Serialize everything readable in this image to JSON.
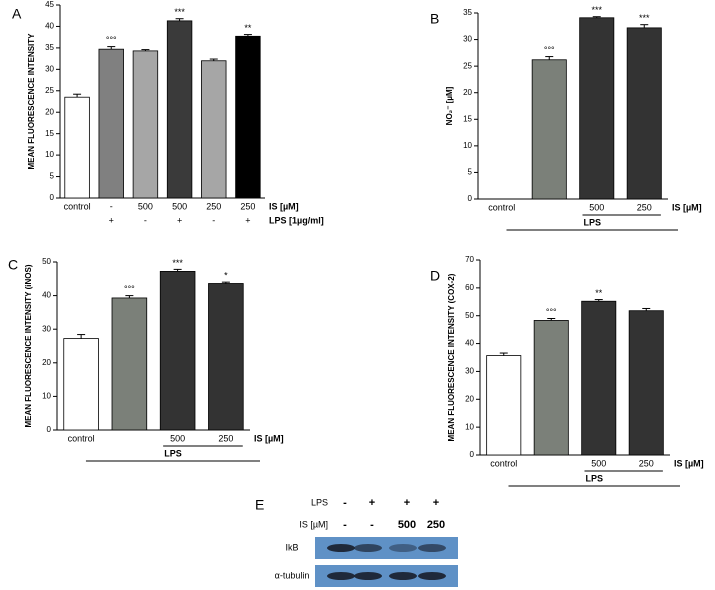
{
  "chart_data": [
    {
      "type": "bar",
      "label": "A",
      "y_label": "MEAN FLUORESCENCE INTENSITY",
      "categories": [
        "control",
        "-",
        "500",
        "500",
        "250",
        "250"
      ],
      "x_label": "IS [µM]",
      "second_row": [
        null,
        "+",
        "-",
        "+",
        "-",
        "+"
      ],
      "second_row_label": "LPS [1µg/ml]",
      "values": [
        23.5,
        34.7,
        34.3,
        41.3,
        32.0,
        37.7
      ],
      "errors": [
        0.7,
        0.6,
        0.3,
        0.5,
        0.4,
        0.4
      ],
      "annotations": [
        null,
        "°°°",
        null,
        "***",
        null,
        "**"
      ],
      "colors": [
        "#ffffff",
        "#808080",
        "#a6a6a6",
        "#3a3a3a",
        "#a6a6a6",
        "#000000"
      ],
      "ylim": [
        0,
        45
      ],
      "yticks": [
        0,
        5,
        10,
        15,
        20,
        25,
        30,
        35,
        40,
        45
      ]
    },
    {
      "type": "bar",
      "label": "B",
      "y_label": "NO₂⁻ [µM]",
      "categories": [
        "control",
        null,
        "500",
        "250"
      ],
      "x_label": "IS [µM]",
      "group_label": "LPS",
      "values": [
        null,
        26.2,
        34.1,
        32.2
      ],
      "errors": [
        null,
        0.6,
        0.2,
        0.6
      ],
      "annotations": [
        null,
        "°°°",
        "***",
        "***"
      ],
      "colors": [
        "#ffffff",
        "#7b8079",
        "#333333",
        "#333333"
      ],
      "ylim": [
        0,
        35
      ],
      "yticks": [
        0,
        5,
        10,
        15,
        20,
        25,
        30,
        35
      ]
    },
    {
      "type": "bar",
      "label": "C",
      "y_label": "MEAN FLUORESCENCE INTENSITY (iNOS)",
      "categories": [
        "control",
        null,
        "500",
        "250"
      ],
      "x_label": "IS [µM]",
      "group_label": "LPS",
      "values": [
        27.2,
        39.3,
        47.2,
        43.6
      ],
      "errors": [
        1.2,
        0.7,
        0.6,
        0.4
      ],
      "annotations": [
        null,
        "°°°",
        "***",
        "*"
      ],
      "colors": [
        "#ffffff",
        "#7b8079",
        "#333333",
        "#333333"
      ],
      "ylim": [
        0,
        50
      ],
      "yticks": [
        0,
        10,
        20,
        30,
        40,
        50
      ]
    },
    {
      "type": "bar",
      "label": "D",
      "y_label": "MEAN FLUORESCENCE INTENSITY (COX-2)",
      "categories": [
        "control",
        null,
        "500",
        "250"
      ],
      "x_label": "IS [µM]",
      "group_label": "LPS",
      "values": [
        35.7,
        48.3,
        55.2,
        51.8
      ],
      "errors": [
        0.9,
        0.7,
        0.6,
        0.8
      ],
      "annotations": [
        null,
        "°°°",
        "**",
        null
      ],
      "colors": [
        "#ffffff",
        "#7b8079",
        "#333333",
        "#333333"
      ],
      "ylim": [
        0,
        70
      ],
      "yticks": [
        0,
        10,
        20,
        30,
        40,
        50,
        60,
        70
      ]
    }
  ],
  "blot": {
    "label": "E",
    "conditions": [
      {
        "name": "LPS",
        "values": [
          "-",
          "+",
          "+",
          "+"
        ]
      },
      {
        "name": "IS [µM]",
        "values": [
          "-",
          "-",
          "500",
          "250"
        ]
      }
    ],
    "bands": [
      "IkB",
      "α-tubulin"
    ]
  }
}
